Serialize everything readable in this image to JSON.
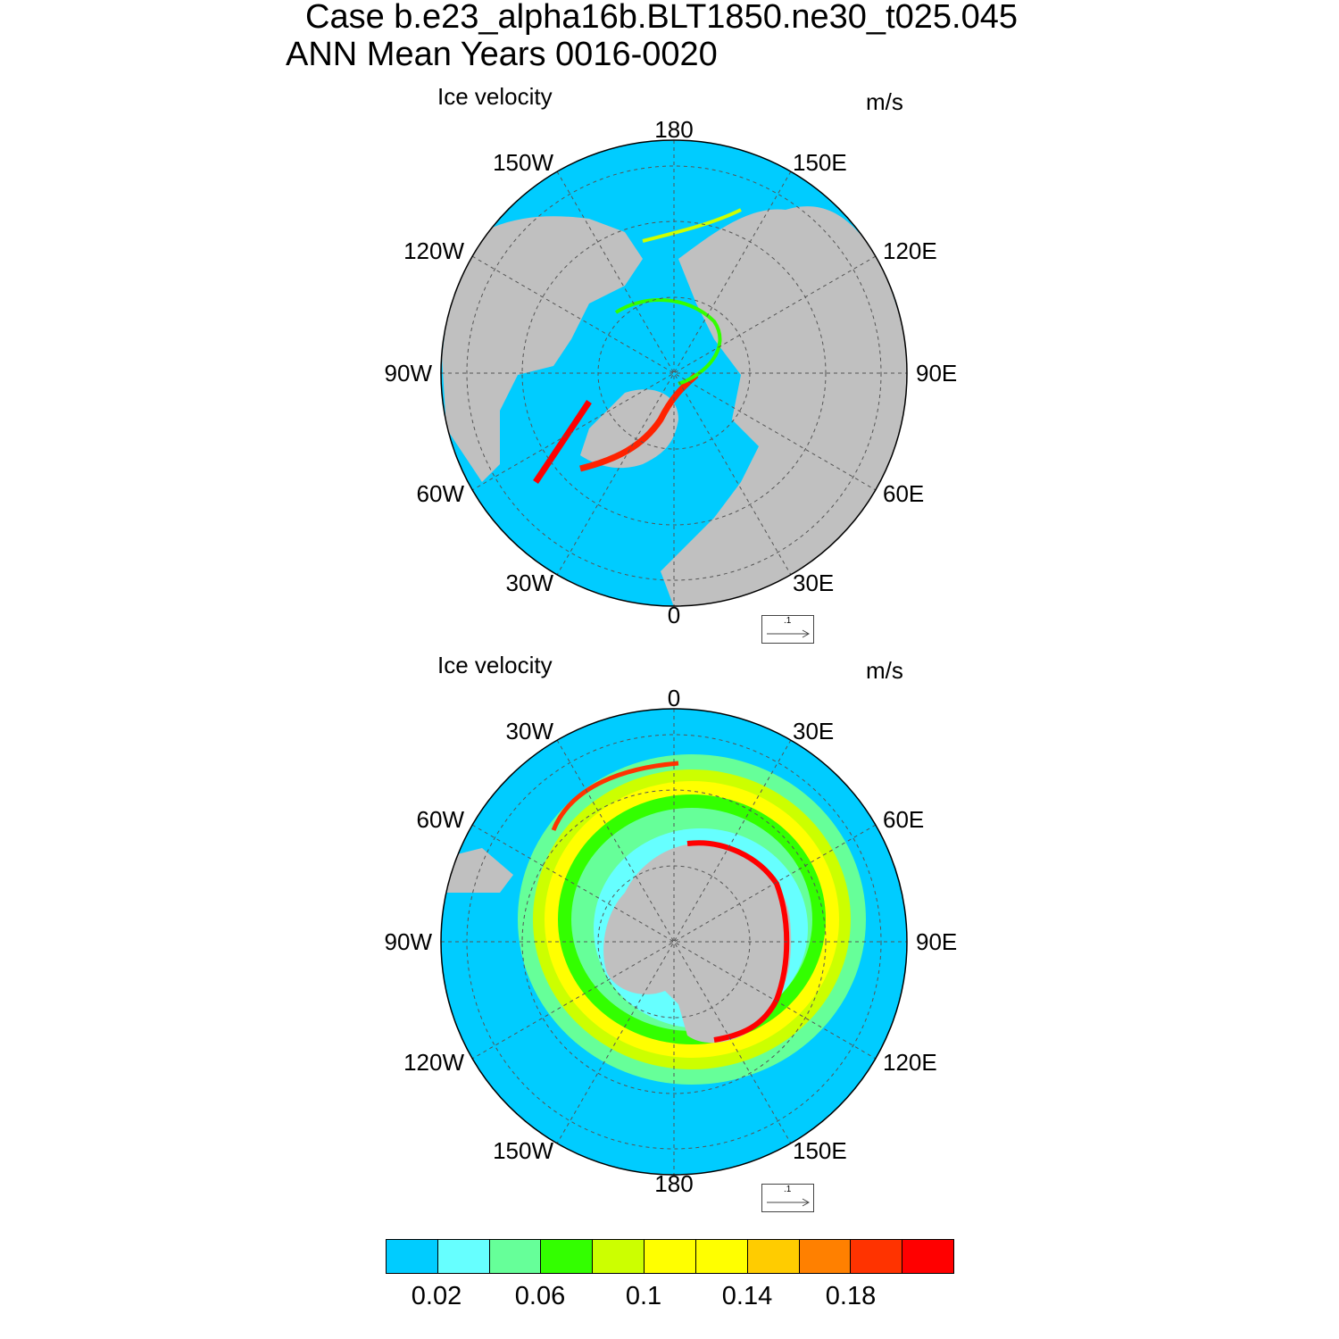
{
  "title": {
    "line1": "Case b.e23_alpha16b.BLT1850.ne30_t025.045",
    "line2": "ANN Mean   Years 0016-0020"
  },
  "colors": {
    "ocean": "#00CCFF",
    "land": "#C0C0C0",
    "scale": [
      "#00CCFF",
      "#66FFFF",
      "#66FF99",
      "#33FF00",
      "#CCFF00",
      "#FFFF00",
      "#FFFF00",
      "#FFCC00",
      "#FF8000",
      "#FF3300",
      "#FF0000"
    ]
  },
  "north": {
    "left_label": "Ice velocity",
    "right_label": "m/s",
    "lon_labels": {
      "top": "180",
      "bottom": "0",
      "left": "90W",
      "right": "90E",
      "w150": "150W",
      "e150": "150E",
      "w120": "120W",
      "e120": "120E",
      "w60": "60W",
      "e60": "60E",
      "w30": "30W",
      "e30": "30E"
    },
    "ref_vector": ".1"
  },
  "south": {
    "left_label": "Ice velocity",
    "right_label": "m/s",
    "lon_labels": {
      "top": "0",
      "bottom": "180",
      "left": "90W",
      "right": "90E",
      "w30": "30W",
      "e30": "30E",
      "w60": "60W",
      "e60": "60E",
      "w120": "120W",
      "e120": "120E",
      "w150": "150W",
      "e150": "150E"
    },
    "ref_vector": ".1"
  },
  "colorbar": {
    "labels": [
      "0.02",
      "0.06",
      "0.1",
      "0.14",
      "0.18"
    ]
  }
}
